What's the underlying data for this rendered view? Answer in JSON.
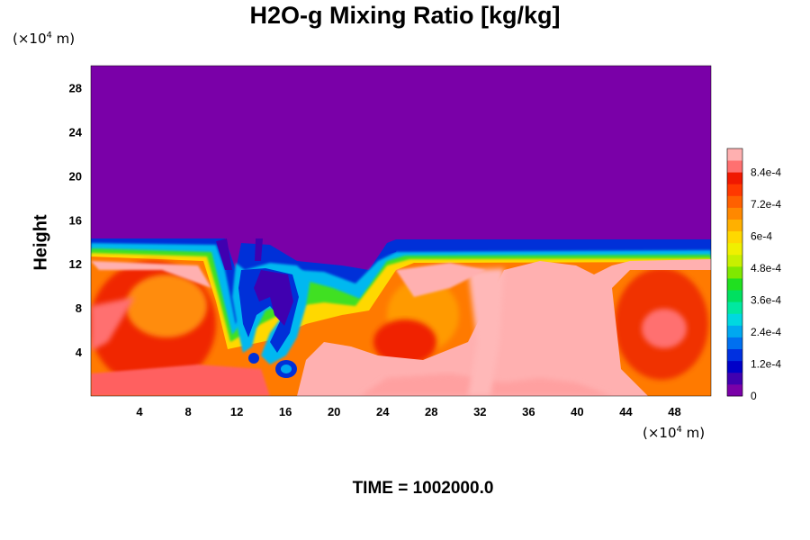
{
  "chart_data": {
    "type": "heatmap",
    "title": "H2O-g Mixing Ratio [kg/kg]",
    "ylabel": "Height",
    "y_unit": {
      "prefix": "(×10",
      "exponent": "4",
      "suffix": " m)"
    },
    "x_unit": {
      "prefix": "(×10",
      "exponent": "4",
      "suffix": " m)"
    },
    "x_ticks": [
      "4",
      "8",
      "12",
      "16",
      "20",
      "24",
      "28",
      "32",
      "36",
      "40",
      "44",
      "48"
    ],
    "y_ticks": [
      "4",
      "8",
      "12",
      "16",
      "20",
      "24",
      "28"
    ],
    "xlim": [
      0,
      51
    ],
    "ylim": [
      0,
      30
    ],
    "colorbar": {
      "ticks": [
        "0",
        "1.2e-4",
        "2.4e-4",
        "3.6e-4",
        "4.8e-4",
        "6e-4",
        "7.2e-4",
        "8.4e-4"
      ],
      "tick_values": [
        0,
        0.00012,
        0.00024,
        0.00036,
        0.00048,
        0.0006,
        0.00072,
        0.00084
      ],
      "range": [
        0,
        0.00093
      ],
      "colors": [
        "#7a00a8",
        "#4000b0",
        "#0000c8",
        "#0030e0",
        "#0070f0",
        "#00a8f0",
        "#00d8e0",
        "#00e8a0",
        "#00e060",
        "#20e020",
        "#80e800",
        "#c8f000",
        "#f0f000",
        "#ffd800",
        "#ffb000",
        "#ff8800",
        "#ff6000",
        "#ff3800",
        "#f01800",
        "#ff7070",
        "#ffb0b0"
      ]
    },
    "field_summary": "moist layer below ~13 (×10^4 m) with convective eddies; dry (0 kg/kg) above"
  },
  "time_label": "TIME = 1002000.0"
}
